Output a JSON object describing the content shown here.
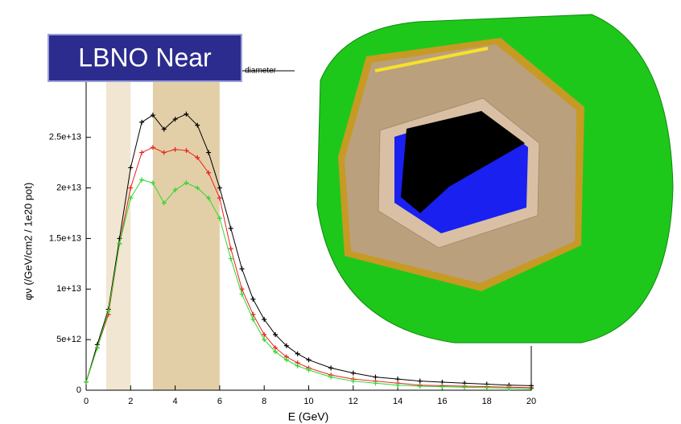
{
  "chart_data": {
    "type": "line",
    "title": "m diameter",
    "annotation": "LBNO Near",
    "x_label": "E (GeV)",
    "y_label": "φν (/GeV/cm2 / 1e20 pot)",
    "x": [
      0,
      0.5,
      1,
      1.5,
      2,
      2.5,
      3,
      3.5,
      4,
      4.5,
      5,
      5.5,
      6,
      6.5,
      7,
      7.5,
      8,
      8.5,
      9,
      9.5,
      10,
      11,
      12,
      13,
      14,
      15,
      16,
      17,
      18,
      19,
      20
    ],
    "series": [
      {
        "color": "#000000",
        "values": [
          800000000000.0,
          4500000000000.0,
          8000000000000.0,
          15000000000000.0,
          22000000000000.0,
          26500000000000.0,
          27200000000000.0,
          25800000000000.0,
          26800000000000.0,
          27300000000000.0,
          26200000000000.0,
          23500000000000.0,
          20000000000000.0,
          16000000000000.0,
          12000000000000.0,
          9000000000000.0,
          7000000000000.0,
          5500000000000.0,
          4400000000000.0,
          3600000000000.0,
          3000000000000.0,
          2200000000000.0,
          1700000000000.0,
          1300000000000.0,
          1100000000000.0,
          900000000000.0,
          800000000000.0,
          700000000000.0,
          600000000000.0,
          500000000000.0,
          450000000000.0
        ]
      },
      {
        "color": "#e8201e",
        "values": [
          800000000000.0,
          4200000000000.0,
          7500000000000.0,
          14500000000000.0,
          20000000000000.0,
          23500000000000.0,
          24000000000000.0,
          23500000000000.0,
          23800000000000.0,
          23700000000000.0,
          23000000000000.0,
          21500000000000.0,
          19000000000000.0,
          14000000000000.0,
          10000000000000.0,
          7500000000000.0,
          5500000000000.0,
          4200000000000.0,
          3300000000000.0,
          2700000000000.0,
          2200000000000.0,
          1500000000000.0,
          1100000000000.0,
          900000000000.0,
          700000000000.0,
          500000000000.0,
          450000000000.0,
          400000000000.0,
          350000000000.0,
          300000000000.0,
          250000000000.0
        ]
      },
      {
        "color": "#2fd62a",
        "values": [
          800000000000.0,
          4200000000000.0,
          7800000000000.0,
          14500000000000.0,
          19000000000000.0,
          20800000000000.0,
          20500000000000.0,
          18500000000000.0,
          19800000000000.0,
          20500000000000.0,
          20000000000000.0,
          19000000000000.0,
          17000000000000.0,
          13000000000000.0,
          9500000000000.0,
          7000000000000.0,
          5000000000000.0,
          3800000000000.0,
          3000000000000.0,
          2400000000000.0,
          2000000000000.0,
          1300000000000.0,
          900000000000.0,
          700000000000.0,
          500000000000.0,
          400000000000.0,
          350000000000.0,
          300000000000.0,
          250000000000.0,
          200000000000.0,
          150000000000.0
        ]
      }
    ],
    "bands": [
      {
        "xlim": [
          0.9,
          2
        ],
        "color": "#f1e6d2"
      },
      {
        "xlim": [
          3,
          6
        ],
        "color": "#e3cfa7"
      }
    ],
    "xlim": [
      0,
      20
    ],
    "ylim": [
      0,
      31500000000000.0
    ],
    "xticks": [
      0,
      2,
      4,
      6,
      8,
      10,
      12,
      14,
      16,
      18,
      20
    ],
    "yticks": [
      0,
      {
        "value": 5000000000000.0,
        "label": "5e+12"
      },
      {
        "value": 10000000000000.0,
        "label": "1e+13"
      },
      {
        "value": 15000000000000.0,
        "label": "1.5e+13"
      },
      {
        "value": 20000000000000.0,
        "label": "2e+13"
      },
      {
        "value": 25000000000000.0,
        "label": "2.5e+13"
      }
    ],
    "grid": false
  }
}
